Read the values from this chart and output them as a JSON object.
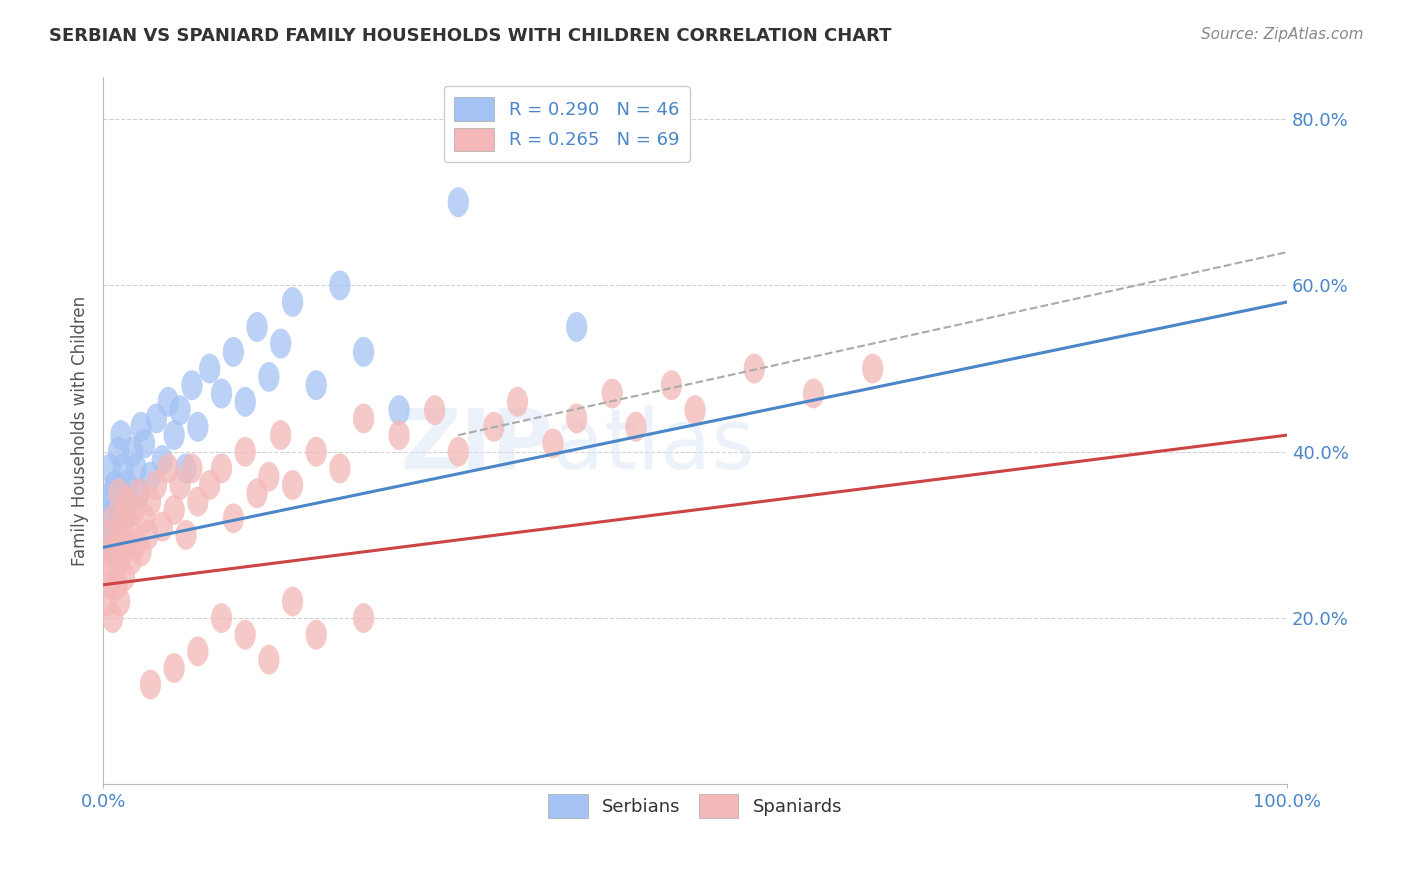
{
  "title": "SERBIAN VS SPANIARD FAMILY HOUSEHOLDS WITH CHILDREN CORRELATION CHART",
  "source_text": "Source: ZipAtlas.com",
  "ylabel": "Family Households with Children",
  "xlim": [
    0,
    100
  ],
  "ylim": [
    0,
    0.85
  ],
  "yticks": [
    0.0,
    0.2,
    0.4,
    0.6,
    0.8
  ],
  "ytick_labels": [
    "",
    "20.0%",
    "40.0%",
    "60.0%",
    "80.0%"
  ],
  "xtick_labels": [
    "0.0%",
    "100.0%"
  ],
  "serbian_color": "#a4c2f4",
  "spaniard_color": "#f4b8b8",
  "serbian_line_color": "#4a86c8",
  "spaniard_line_color": "#cc4444",
  "serbian_R": 0.29,
  "serbian_N": 46,
  "spaniard_R": 0.265,
  "spaniard_N": 69,
  "legend_label_serbian": "R = 0.290   N = 46",
  "legend_label_spaniard": "R = 0.265   N = 69",
  "background_color": "#ffffff",
  "grid_color": "#cccccc",
  "watermark": "ZIPatlas",
  "serbian_x": [
    0.3,
    0.4,
    0.5,
    0.6,
    0.7,
    0.8,
    0.9,
    1.0,
    1.1,
    1.2,
    1.3,
    1.4,
    1.5,
    1.6,
    1.7,
    1.8,
    2.0,
    2.2,
    2.5,
    2.8,
    3.0,
    3.2,
    3.5,
    4.0,
    4.5,
    5.0,
    5.5,
    6.0,
    6.5,
    7.0,
    7.5,
    8.0,
    9.0,
    10.0,
    11.0,
    12.0,
    13.0,
    14.0,
    15.0,
    16.0,
    18.0,
    20.0,
    22.0,
    25.0,
    30.0,
    40.0
  ],
  "serbian_y": [
    0.32,
    0.3,
    0.34,
    0.38,
    0.29,
    0.35,
    0.28,
    0.36,
    0.33,
    0.31,
    0.4,
    0.27,
    0.42,
    0.35,
    0.38,
    0.32,
    0.36,
    0.34,
    0.4,
    0.38,
    0.35,
    0.43,
    0.41,
    0.37,
    0.44,
    0.39,
    0.46,
    0.42,
    0.45,
    0.38,
    0.48,
    0.43,
    0.5,
    0.47,
    0.52,
    0.46,
    0.55,
    0.49,
    0.53,
    0.58,
    0.48,
    0.6,
    0.52,
    0.45,
    0.7,
    0.55
  ],
  "spaniard_x": [
    0.2,
    0.3,
    0.5,
    0.6,
    0.7,
    0.8,
    0.9,
    1.0,
    1.1,
    1.2,
    1.3,
    1.4,
    1.5,
    1.6,
    1.7,
    1.8,
    1.9,
    2.0,
    2.2,
    2.4,
    2.6,
    2.8,
    3.0,
    3.2,
    3.5,
    3.8,
    4.0,
    4.5,
    5.0,
    5.5,
    6.0,
    6.5,
    7.0,
    7.5,
    8.0,
    9.0,
    10.0,
    11.0,
    12.0,
    13.0,
    14.0,
    15.0,
    16.0,
    18.0,
    20.0,
    22.0,
    25.0,
    28.0,
    30.0,
    33.0,
    35.0,
    38.0,
    40.0,
    43.0,
    45.0,
    48.0,
    50.0,
    55.0,
    60.0,
    65.0,
    22.0,
    18.0,
    16.0,
    14.0,
    12.0,
    10.0,
    8.0,
    6.0,
    4.0
  ],
  "spaniard_y": [
    0.26,
    0.22,
    0.28,
    0.24,
    0.3,
    0.2,
    0.32,
    0.26,
    0.28,
    0.24,
    0.35,
    0.22,
    0.3,
    0.28,
    0.32,
    0.25,
    0.34,
    0.29,
    0.31,
    0.27,
    0.33,
    0.29,
    0.35,
    0.28,
    0.32,
    0.3,
    0.34,
    0.36,
    0.31,
    0.38,
    0.33,
    0.36,
    0.3,
    0.38,
    0.34,
    0.36,
    0.38,
    0.32,
    0.4,
    0.35,
    0.37,
    0.42,
    0.36,
    0.4,
    0.38,
    0.44,
    0.42,
    0.45,
    0.4,
    0.43,
    0.46,
    0.41,
    0.44,
    0.47,
    0.43,
    0.48,
    0.45,
    0.5,
    0.47,
    0.5,
    0.2,
    0.18,
    0.22,
    0.15,
    0.18,
    0.2,
    0.16,
    0.14,
    0.12
  ],
  "serbian_trend_x": [
    0,
    100
  ],
  "serbian_trend_y": [
    0.285,
    0.58
  ],
  "spaniard_trend_x": [
    0,
    100
  ],
  "spaniard_trend_y": [
    0.24,
    0.42
  ],
  "dash_line_x": [
    30,
    100
  ],
  "dash_line_y": [
    0.42,
    0.64
  ]
}
